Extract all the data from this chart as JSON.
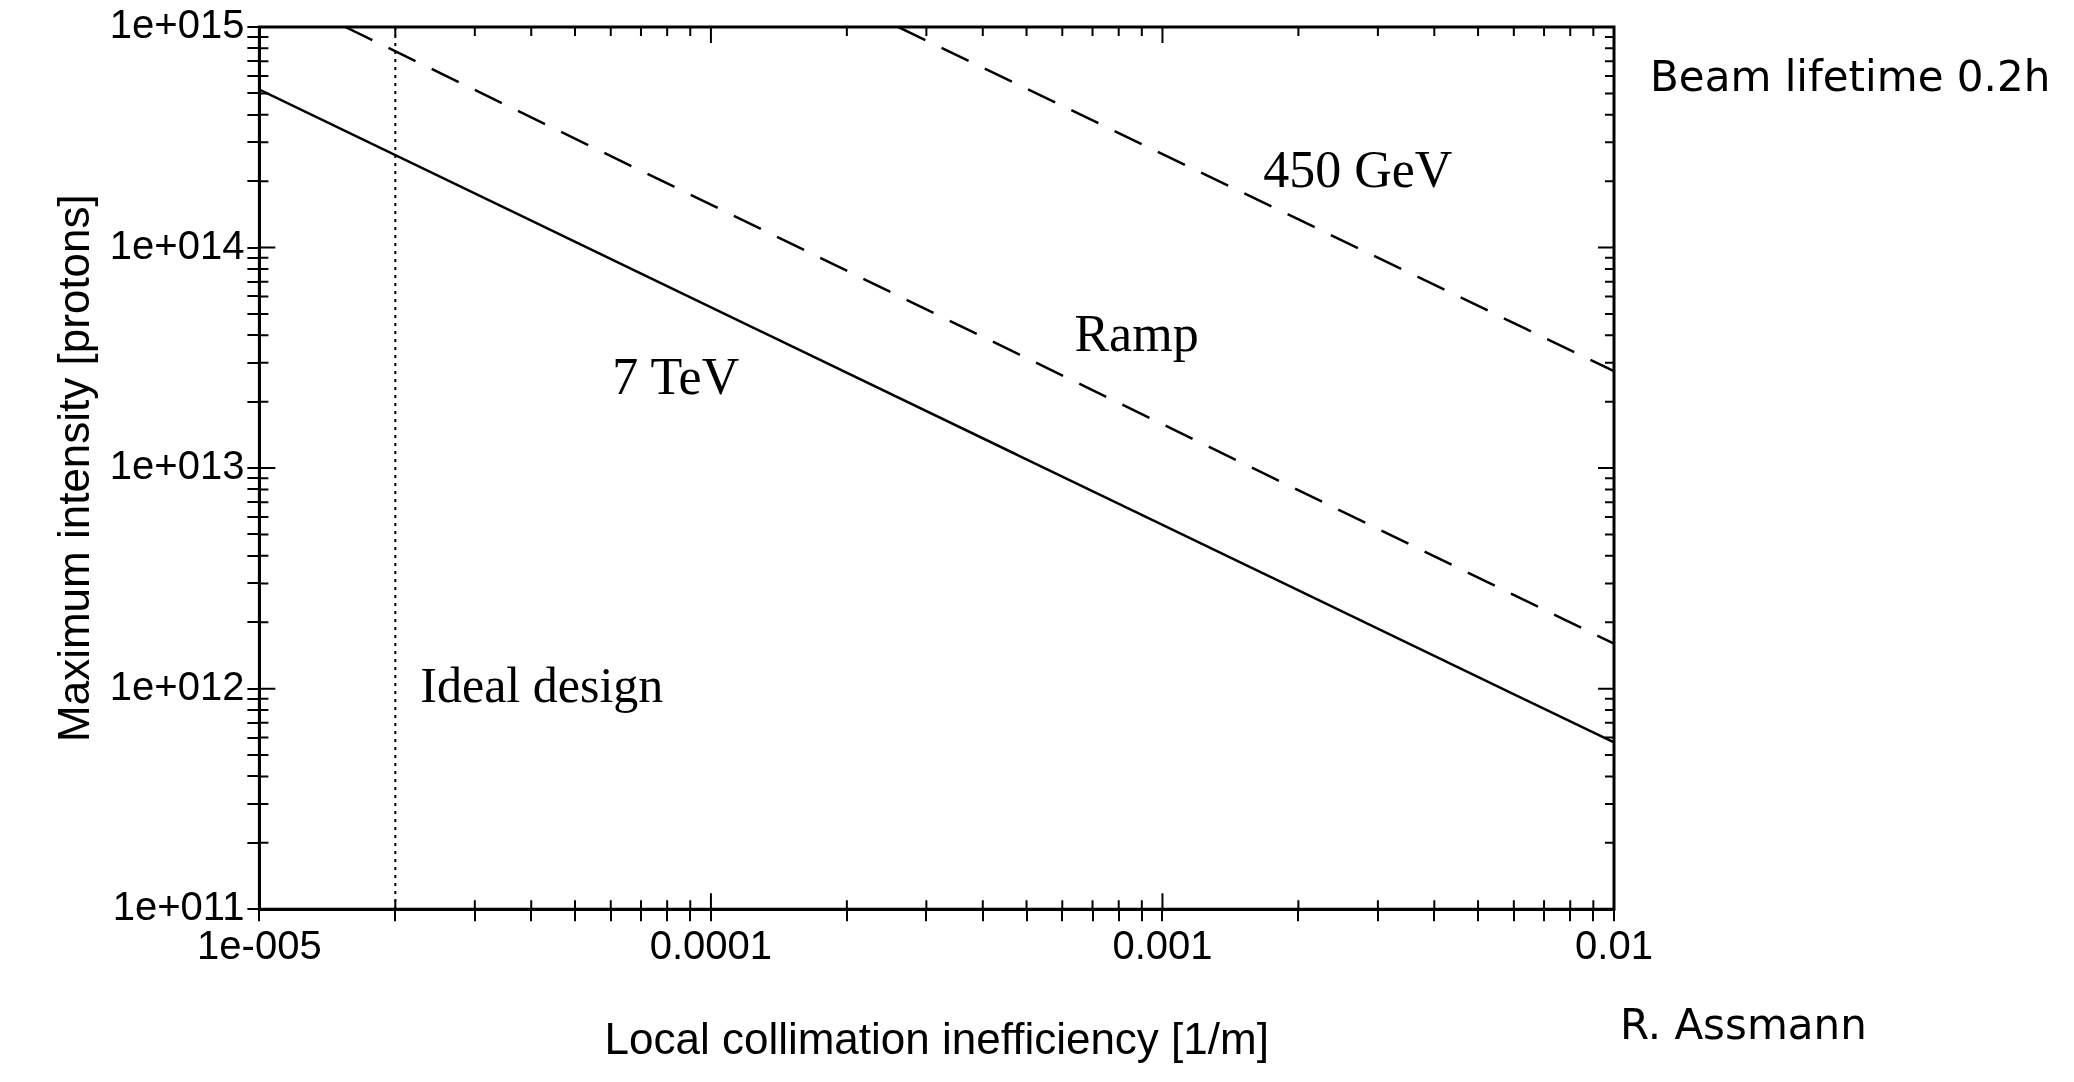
{
  "chart_data": {
    "type": "line",
    "title": "Beam lifetime 0.2h",
    "xlabel": "Local collimation inefficiency [1/m]",
    "ylabel": "Maximum intensity [protons]",
    "annotations": [
      "R. Assmann"
    ],
    "log": "xy",
    "legend": false,
    "marker": "none",
    "xlim": [
      1e-05,
      0.01
    ],
    "ylim": [
      100000000000.0,
      1000000000000000.0
    ],
    "xticks": [
      {
        "value": 1e-05,
        "label": "1e-005"
      },
      {
        "value": 2e-05,
        "label": null
      },
      {
        "value": 3e-05,
        "label": null
      },
      {
        "value": 4e-05,
        "label": null
      },
      {
        "value": 5e-05,
        "label": null
      },
      {
        "value": 6e-05,
        "label": null
      },
      {
        "value": 7e-05,
        "label": null
      },
      {
        "value": 8e-05,
        "label": null
      },
      {
        "value": 9e-05,
        "label": null
      },
      0.0001,
      {
        "value": 0.0002,
        "label": null
      },
      {
        "value": 0.0003,
        "label": null
      },
      {
        "value": 0.0004,
        "label": null
      },
      {
        "value": 0.0005,
        "label": null
      },
      {
        "value": 0.0006,
        "label": null
      },
      {
        "value": 0.0007,
        "label": null
      },
      {
        "value": 0.0008,
        "label": null
      },
      {
        "value": 0.0009,
        "label": null
      },
      0.001,
      {
        "value": 0.002,
        "label": null
      },
      {
        "value": 0.003,
        "label": null
      },
      {
        "value": 0.004,
        "label": null
      },
      {
        "value": 0.005,
        "label": null
      },
      {
        "value": 0.006,
        "label": null
      },
      {
        "value": 0.007,
        "label": null
      },
      {
        "value": 0.008,
        "label": null
      },
      {
        "value": 0.009,
        "label": null
      },
      0.01
    ],
    "yticks": [
      {
        "value": 100000000000.0,
        "label": "1e+011"
      },
      {
        "value": 200000000000.0,
        "label": null
      },
      {
        "value": 300000000000.0,
        "label": null
      },
      {
        "value": 400000000000.0,
        "label": null
      },
      {
        "value": 500000000000.0,
        "label": null
      },
      {
        "value": 600000000000.0,
        "label": null
      },
      {
        "value": 700000000000.0,
        "label": null
      },
      {
        "value": 800000000000.0,
        "label": null
      },
      {
        "value": 900000000000.0,
        "label": null
      },
      {
        "value": 1000000000000.0,
        "label": "1e+012"
      },
      {
        "value": 2000000000000.0,
        "label": null
      },
      {
        "value": 3000000000000.0,
        "label": null
      },
      {
        "value": 4000000000000.0,
        "label": null
      },
      {
        "value": 5000000000000.0,
        "label": null
      },
      {
        "value": 6000000000000.0,
        "label": null
      },
      {
        "value": 7000000000000.0,
        "label": null
      },
      {
        "value": 8000000000000.0,
        "label": null
      },
      {
        "value": 9000000000000.0,
        "label": null
      },
      {
        "value": 10000000000000.0,
        "label": "1e+013"
      },
      {
        "value": 20000000000000.0,
        "label": null
      },
      {
        "value": 30000000000000.0,
        "label": null
      },
      {
        "value": 40000000000000.0,
        "label": null
      },
      {
        "value": 50000000000000.0,
        "label": null
      },
      {
        "value": 60000000000000.0,
        "label": null
      },
      {
        "value": 70000000000000.0,
        "label": null
      },
      {
        "value": 80000000000000.0,
        "label": null
      },
      {
        "value": 90000000000000.0,
        "label": null
      },
      {
        "value": 100000000000000.0,
        "label": "1e+014"
      },
      {
        "value": 200000000000000.0,
        "label": null
      },
      {
        "value": 300000000000000.0,
        "label": null
      },
      {
        "value": 400000000000000.0,
        "label": null
      },
      {
        "value": 500000000000000.0,
        "label": null
      },
      {
        "value": 600000000000000.0,
        "label": null
      },
      {
        "value": 700000000000000.0,
        "label": null
      },
      {
        "value": 800000000000000.0,
        "label": null
      },
      {
        "value": 900000000000000.0,
        "label": null
      },
      {
        "value": 1000000000000000.0,
        "label": "1e+015"
      }
    ],
    "series": [
      {
        "name": "7 TeV",
        "color": "#000000",
        "line_style": "solid",
        "x": [
          1e-05,
          0.01
        ],
        "values": [
          520000000000000.0,
          570000000000.0
        ]
      },
      {
        "name": "Ramp",
        "color": "#000000",
        "line_style": "dashed",
        "x": [
          1.55e-05,
          0.01
        ],
        "values": [
          1000000000000000.0,
          1600000000000.0
        ]
      },
      {
        "name": "450 GeV",
        "color": "#000000",
        "line_style": "dashed",
        "x": [
          0.00026,
          0.01
        ],
        "values": [
          1000000000000000.0,
          27500000000000.0
        ]
      }
    ],
    "ref_lines": [
      {
        "axis": "x",
        "value": 2e-05,
        "label": "Ideal design",
        "line_style": "dotted",
        "color": "#000000"
      }
    ]
  }
}
